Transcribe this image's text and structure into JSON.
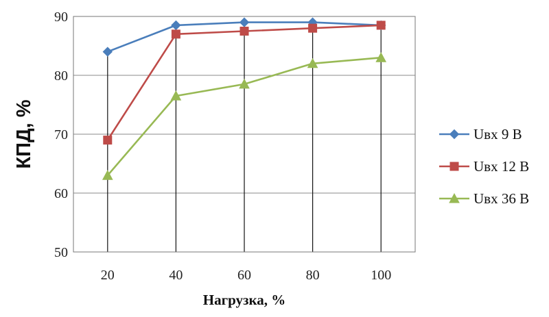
{
  "chart_data": {
    "type": "line",
    "title": "",
    "xlabel": "Нагрузка, %",
    "ylabel": "КПД, %",
    "x": [
      20,
      40,
      60,
      80,
      100
    ],
    "xticks": [
      "20",
      "40",
      "60",
      "80",
      "100"
    ],
    "yticks": [
      "50",
      "60",
      "70",
      "80",
      "90"
    ],
    "ylim": [
      50,
      90
    ],
    "grid": true,
    "legend": "right",
    "series": [
      {
        "name": "Uвх 9 В",
        "color": "#4a7ebb",
        "marker": "diamond",
        "values": [
          84,
          88.5,
          89,
          89,
          88.5
        ]
      },
      {
        "name": "Uвх 12 В",
        "color": "#be4b48",
        "marker": "square",
        "values": [
          69,
          87,
          87.5,
          88,
          88.5
        ]
      },
      {
        "name": "Uвх 36 В",
        "color": "#98b954",
        "marker": "triangle",
        "values": [
          63,
          76.5,
          78.5,
          82,
          83
        ]
      }
    ]
  }
}
